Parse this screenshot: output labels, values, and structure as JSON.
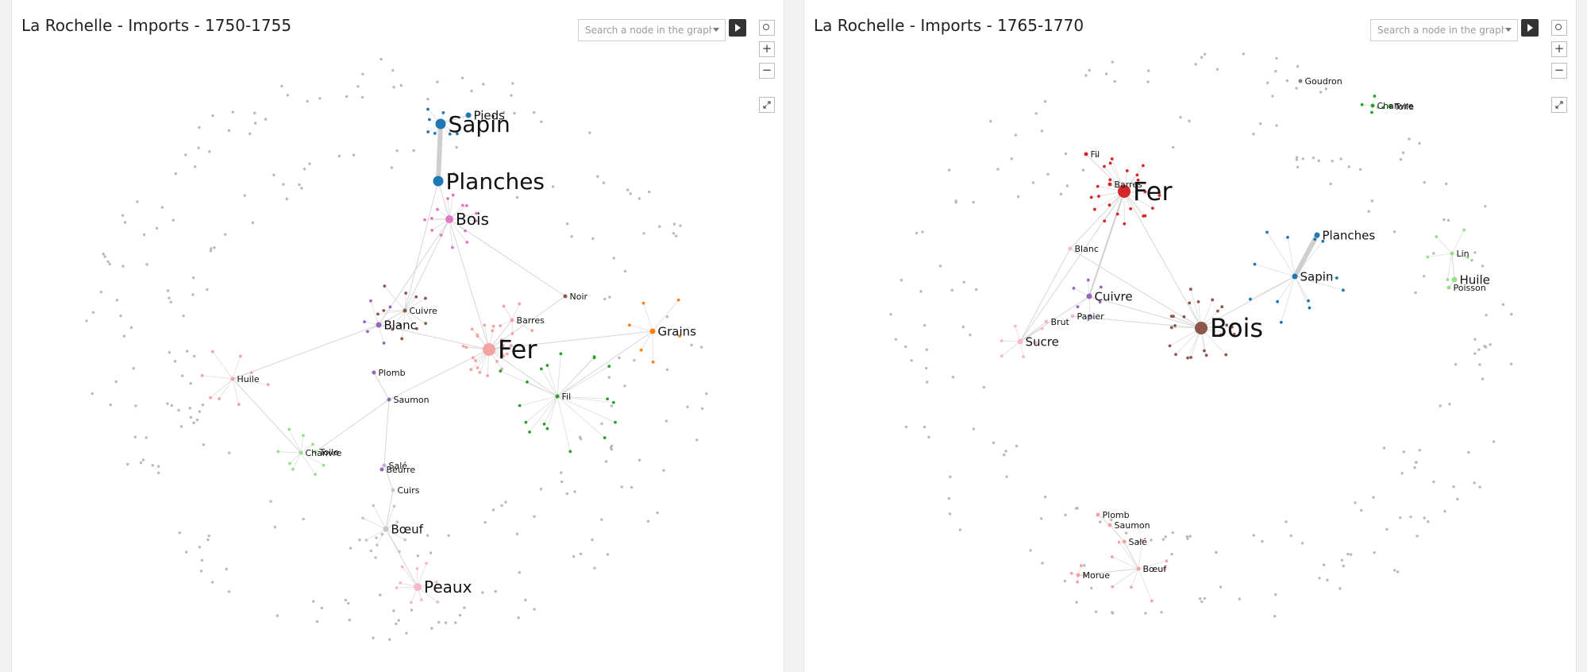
{
  "panels": [
    {
      "title": "La Rochelle - Imports - 1750-1755",
      "search_placeholder": "Search a node in the graph...",
      "nodes": [
        {
          "label": "Sapin",
          "size": "xl",
          "color": "#1f77b4"
        },
        {
          "label": "Pieds",
          "size": "m",
          "color": "#1f77b4"
        },
        {
          "label": "Planches",
          "size": "xl",
          "color": "#1f77b4"
        },
        {
          "label": "Bois",
          "size": "l",
          "color": "#e377c2"
        },
        {
          "label": "Cuivre",
          "size": "s",
          "color": "#8c564b"
        },
        {
          "label": "Blanc",
          "size": "m",
          "color": "#9467bd"
        },
        {
          "label": "Noir",
          "size": "s",
          "color": "#8c564b"
        },
        {
          "label": "Barres",
          "size": "s",
          "color": "#f4a3a3"
        },
        {
          "label": "Fer",
          "size": "xxl",
          "color": "#f4a3a3"
        },
        {
          "label": "Grains",
          "size": "m",
          "color": "#ff7f0e"
        },
        {
          "label": "Huile",
          "size": "s",
          "color": "#f4a3a3"
        },
        {
          "label": "Plomb",
          "size": "s",
          "color": "#9467bd"
        },
        {
          "label": "Saumon",
          "size": "s",
          "color": "#9467bd"
        },
        {
          "label": "Fil",
          "size": "s",
          "color": "#2ca02c"
        },
        {
          "label": "Toile",
          "size": "s",
          "color": "#98df8a"
        },
        {
          "label": "Chanvre",
          "size": "s",
          "color": "#98df8a"
        },
        {
          "label": "Salé",
          "size": "s",
          "color": "#c5b0d5"
        },
        {
          "label": "Beurre",
          "size": "s",
          "color": "#9467bd"
        },
        {
          "label": "Cuirs",
          "size": "s",
          "color": "#c7c7c7"
        },
        {
          "label": "Bœuf",
          "size": "m",
          "color": "#c7c7c7"
        },
        {
          "label": "Peaux",
          "size": "l",
          "color": "#f7b6d2"
        }
      ]
    },
    {
      "title": "La Rochelle - Imports - 1765-1770",
      "search_placeholder": "Search a node in the graph...",
      "nodes": [
        {
          "label": "Goudron",
          "size": "s",
          "color": "#7f7f7f"
        },
        {
          "label": "Chanvre",
          "size": "s",
          "color": "#2ca02c"
        },
        {
          "label": "Toile",
          "size": "s",
          "color": "#2ca02c"
        },
        {
          "label": "Fil",
          "size": "s",
          "color": "#d62728"
        },
        {
          "label": "Barres",
          "size": "s",
          "color": "#d62728"
        },
        {
          "label": "Fer",
          "size": "xxl",
          "color": "#d62728"
        },
        {
          "label": "Planches",
          "size": "m",
          "color": "#1f77b4"
        },
        {
          "label": "Blanc",
          "size": "s",
          "color": "#f7b6d2"
        },
        {
          "label": "Lin",
          "size": "s",
          "color": "#98df8a"
        },
        {
          "label": "Sapin",
          "size": "m",
          "color": "#1f77b4"
        },
        {
          "label": "Huile",
          "size": "m",
          "color": "#98df8a"
        },
        {
          "label": "Poisson",
          "size": "s",
          "color": "#98df8a"
        },
        {
          "label": "Cuivre",
          "size": "m",
          "color": "#9467bd"
        },
        {
          "label": "Brut",
          "size": "s",
          "color": "#f7b6d2"
        },
        {
          "label": "Papier",
          "size": "s",
          "color": "#f7b6d2"
        },
        {
          "label": "Bois",
          "size": "xxl",
          "color": "#8c564b"
        },
        {
          "label": "Sucre",
          "size": "m",
          "color": "#f7b6d2"
        },
        {
          "label": "Plomb",
          "size": "s",
          "color": "#f4a3a3"
        },
        {
          "label": "Saumon",
          "size": "s",
          "color": "#f4a3a3"
        },
        {
          "label": "Salé",
          "size": "s",
          "color": "#f4a3a3"
        },
        {
          "label": "Morue",
          "size": "s",
          "color": "#f4a3a3"
        },
        {
          "label": "Bœuf",
          "size": "s",
          "color": "#f4a3a3"
        }
      ]
    }
  ]
}
